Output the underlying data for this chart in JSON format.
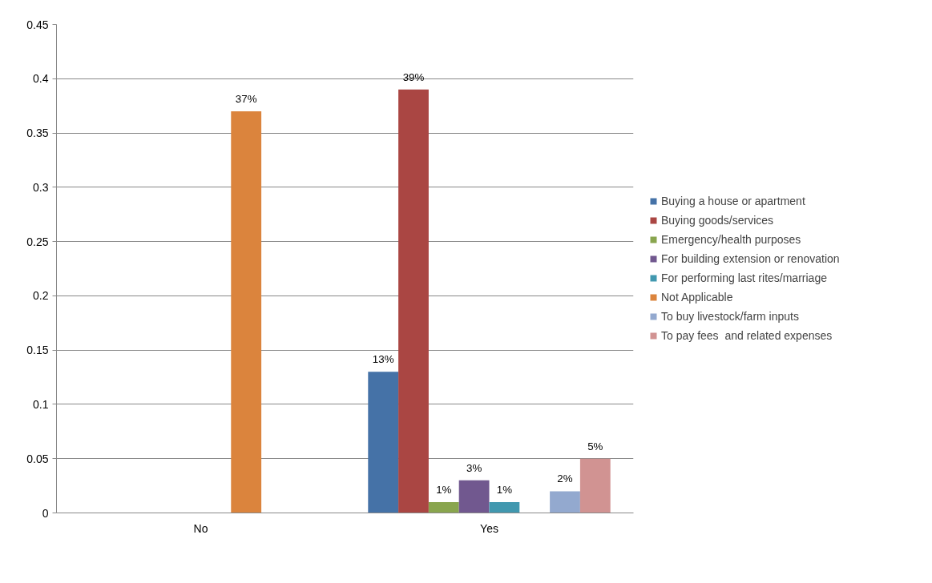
{
  "chart_data": {
    "type": "bar",
    "categories": [
      "No",
      "Yes"
    ],
    "series": [
      {
        "name": "Buying a house or apartment",
        "color": "#4572a7",
        "values": [
          null,
          0.13
        ],
        "value_labels": [
          null,
          "13%"
        ]
      },
      {
        "name": "Buying goods/services",
        "color": "#aa4643",
        "values": [
          null,
          0.39
        ],
        "value_labels": [
          null,
          "39%"
        ]
      },
      {
        "name": "Emergency/health purposes",
        "color": "#89a54e",
        "values": [
          null,
          0.01
        ],
        "value_labels": [
          null,
          "1%"
        ]
      },
      {
        "name": "For building extension or renovation",
        "color": "#71588f",
        "values": [
          null,
          0.03
        ],
        "value_labels": [
          null,
          "3%"
        ]
      },
      {
        "name": "For performing last rites/marriage",
        "color": "#4198af",
        "values": [
          null,
          0.01
        ],
        "value_labels": [
          null,
          "1%"
        ]
      },
      {
        "name": "Not Applicable",
        "color": "#db843d",
        "values": [
          0.37,
          null
        ],
        "value_labels": [
          "37%",
          null
        ]
      },
      {
        "name": "To buy livestock/farm inputs",
        "color": "#93a9cf",
        "values": [
          null,
          0.02
        ],
        "value_labels": [
          null,
          "2%"
        ]
      },
      {
        "name": "To pay fees  and related expenses",
        "color": "#d19392",
        "values": [
          null,
          0.05
        ],
        "value_labels": [
          null,
          "5%"
        ]
      }
    ],
    "ylim": [
      0,
      0.45
    ],
    "yticks": [
      0,
      0.05,
      0.1,
      0.15,
      0.2,
      0.25,
      0.3,
      0.35,
      0.4,
      0.45
    ],
    "grid": "y",
    "legend": "right"
  }
}
